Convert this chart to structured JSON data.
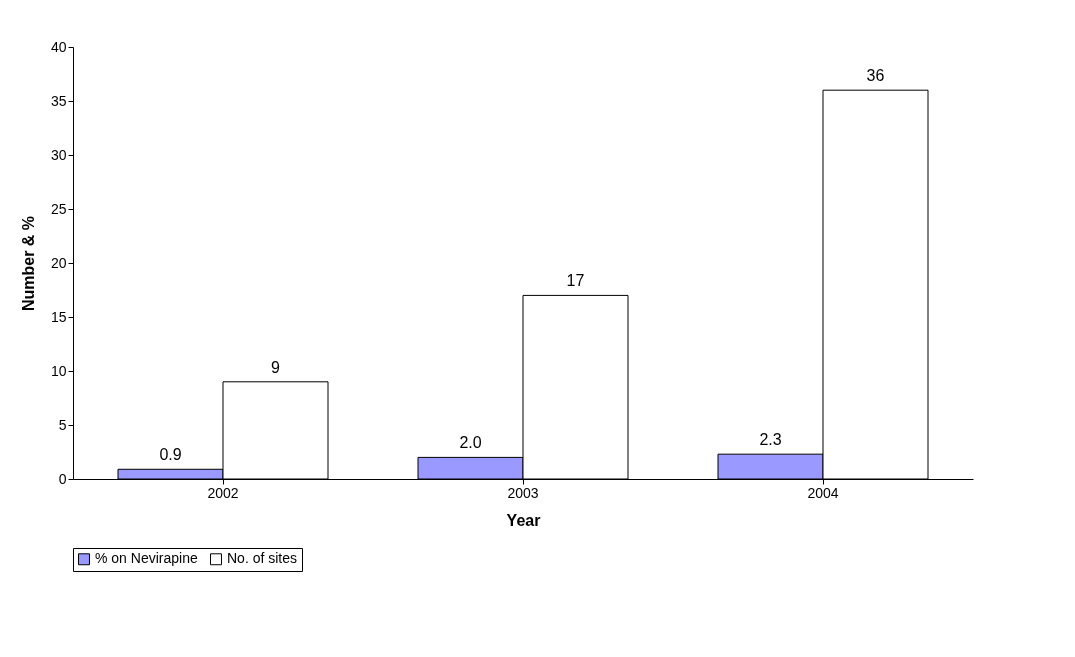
{
  "chart_data": {
    "type": "bar",
    "xlabel": "Year",
    "ylabel": "Number & %",
    "categories": [
      "2002",
      "2003",
      "2004"
    ],
    "series": [
      {
        "name": "% on Nevirapine",
        "color": "#9999ff",
        "values": [
          0.9,
          2.0,
          2.3
        ],
        "value_labels": [
          "0.9",
          "2.0",
          "2.3"
        ]
      },
      {
        "name": "No. of sites",
        "color": "#ffffff",
        "values": [
          9,
          17,
          36
        ],
        "value_labels": [
          "9",
          "17",
          "36"
        ]
      }
    ],
    "ylim": [
      0,
      40
    ],
    "yticks": [
      0,
      5,
      10,
      15,
      20,
      25,
      30,
      35,
      40
    ],
    "grid": false,
    "legend": "bottom"
  }
}
